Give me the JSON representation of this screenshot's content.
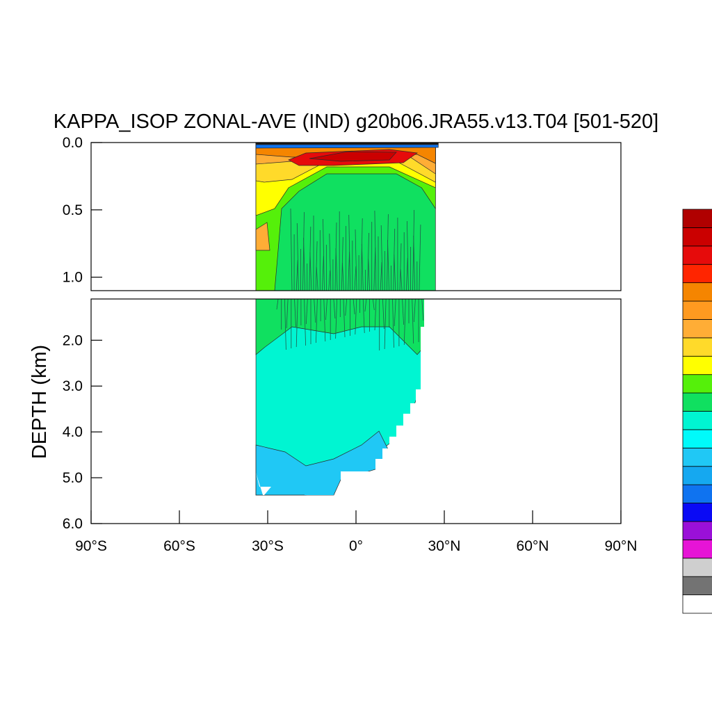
{
  "chart_data": {
    "type": "heatmap",
    "title": "KAPPA_ISOP ZONAL-AVE (IND) g20b06.JRA55.v13.T04 [501-520]",
    "ylabel": "DEPTH (km)",
    "xlabel": "",
    "x_ticks": [
      "90°S",
      "60°S",
      "30°S",
      "0°",
      "30°N",
      "60°N",
      "90°N"
    ],
    "xlim": [
      -90,
      90
    ],
    "ylim": [
      0,
      6
    ],
    "y_reversed": true,
    "panels": [
      {
        "name": "upper",
        "depth_range": [
          0,
          1.1
        ],
        "y_ticks": [
          "0.0",
          "0.5",
          "1.0"
        ]
      },
      {
        "name": "lower",
        "depth_range": [
          1.1,
          6.0
        ],
        "y_ticks": [
          "2.0",
          "3.0",
          "4.0",
          "5.0",
          "6.0"
        ]
      }
    ],
    "data_extent": {
      "lat_min": -34,
      "lat_max": 27,
      "max_depth": 5.4
    },
    "colorbar": {
      "labels": [],
      "colors": [
        "#ffffff",
        "#737373",
        "#cfcfcf",
        "#e614d6",
        "#9a10d8",
        "#0a0af5",
        "#0f73f0",
        "#15a8f0",
        "#20c8f5",
        "#00fafa",
        "#00f5d2",
        "#10e060",
        "#55f00a",
        "#ffff00",
        "#ffda2a",
        "#ffad36",
        "#ff9a20",
        "#f58500",
        "#ff2500",
        "#e60b0b",
        "#cb0000",
        "#b00000"
      ]
    },
    "grid": false
  }
}
